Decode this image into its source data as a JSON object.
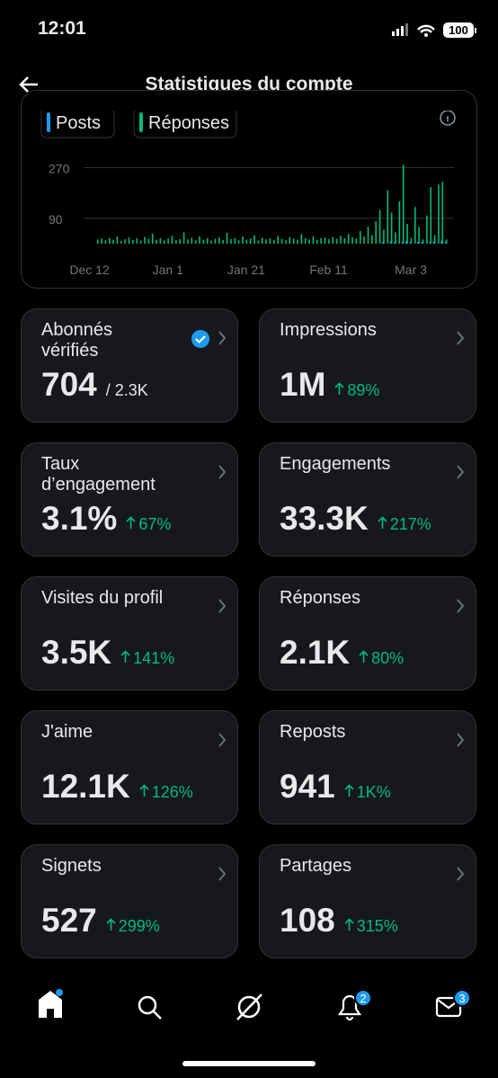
{
  "status": {
    "time": "12:01",
    "battery": "100"
  },
  "header": {
    "title": "Statistiques du compte"
  },
  "chart_data": {
    "type": "bar",
    "x": [
      2,
      3,
      4,
      5,
      6,
      7,
      8,
      9,
      10,
      11,
      12,
      13,
      14,
      15,
      16,
      17,
      18,
      19,
      20,
      21,
      22,
      23,
      24,
      25,
      26,
      27,
      28,
      29,
      30,
      31,
      32,
      33,
      34,
      35,
      36,
      37,
      38,
      39,
      40,
      41,
      42,
      43,
      44,
      45,
      46,
      47,
      48,
      49,
      50,
      51,
      52,
      53,
      54,
      55,
      56,
      57,
      58,
      59,
      60,
      61,
      62,
      63,
      64,
      65,
      66,
      67,
      68,
      69,
      70,
      71,
      72,
      73,
      74,
      75,
      76,
      77,
      78,
      79,
      80,
      81,
      82,
      83,
      84,
      85,
      86,
      87,
      88,
      89,
      90,
      91
    ],
    "series": [
      {
        "name": "Posts",
        "color": "#1d9bf0",
        "values": [
          0,
          0,
          0,
          0,
          0,
          0,
          0,
          0,
          0,
          0,
          0,
          0,
          0,
          0,
          0,
          0,
          0,
          0,
          0,
          0,
          0,
          0,
          0,
          0,
          0,
          0,
          0,
          0,
          0,
          0,
          0,
          0,
          0,
          0,
          0,
          0,
          0,
          0,
          0,
          0,
          0,
          0,
          0,
          0,
          0,
          0,
          0,
          0,
          0,
          0,
          0,
          0,
          0,
          0,
          0,
          0,
          0,
          0,
          0,
          0,
          0,
          0,
          0,
          0,
          0,
          0,
          0,
          0,
          0,
          0,
          0,
          0,
          0,
          6,
          0,
          8,
          5,
          0,
          6,
          10,
          5,
          0,
          7,
          6,
          0,
          5,
          8,
          0,
          9,
          6
        ]
      },
      {
        "name": "Réponses",
        "color": "#00ba7c",
        "values": [
          15,
          18,
          12,
          20,
          14,
          25,
          10,
          16,
          22,
          13,
          19,
          11,
          24,
          17,
          35,
          14,
          20,
          12,
          18,
          28,
          13,
          16,
          40,
          15,
          21,
          12,
          26,
          14,
          19,
          11,
          17,
          22,
          13,
          38,
          16,
          20,
          12,
          25,
          14,
          18,
          30,
          11,
          21,
          15,
          19,
          13,
          27,
          16,
          12,
          23,
          18,
          14,
          34,
          20,
          15,
          26,
          13,
          19,
          22,
          16,
          24,
          17,
          28,
          20,
          35,
          22,
          18,
          45,
          25,
          60,
          30,
          80,
          120,
          50,
          190,
          110,
          40,
          150,
          280,
          70,
          20,
          130,
          60,
          15,
          100,
          200,
          30,
          210,
          220,
          15
        ]
      }
    ],
    "xlim": [
      -1.5,
      93
    ],
    "xticks": [
      {
        "value": 0,
        "label": "Dec 12"
      },
      {
        "value": 20,
        "label": "Jan 1"
      },
      {
        "value": 40,
        "label": "Jan 21"
      },
      {
        "value": 61,
        "label": "Feb 11"
      },
      {
        "value": 82,
        "label": "Mar 3"
      }
    ],
    "ylim": [
      0,
      300
    ],
    "yticks": [
      90,
      270
    ],
    "grid": true
  },
  "cards": [
    {
      "title": "Abonnés vérifiés",
      "value": "704",
      "sub": "/ 2.3K"
    },
    {
      "title": "Impressions",
      "value": "1M",
      "change": "89%"
    },
    {
      "title": "Taux d’engagement",
      "value": "3.1%",
      "change": "67%"
    },
    {
      "title": "Engagements",
      "value": "33.3K",
      "change": "217%"
    },
    {
      "title": "Visites du profil",
      "value": "3.5K",
      "change": "141%"
    },
    {
      "title": "Réponses",
      "value": "2.1K",
      "change": "80%"
    },
    {
      "title": "J'aime",
      "value": "12.1K",
      "change": "126%"
    },
    {
      "title": "Reposts",
      "value": "941",
      "change": "1K%"
    },
    {
      "title": "Signets",
      "value": "527",
      "change": "299%"
    },
    {
      "title": "Partages",
      "value": "108",
      "change": "315%"
    }
  ],
  "nav": {
    "notifications_badge": "2",
    "messages_badge": "3"
  }
}
